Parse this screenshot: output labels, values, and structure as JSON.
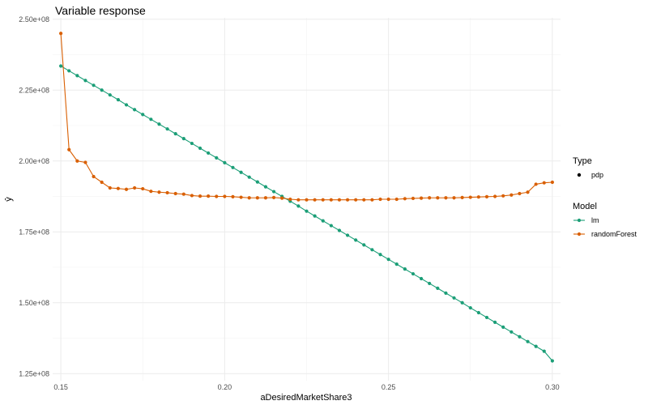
{
  "chart_data": {
    "type": "line",
    "title": "Variable response",
    "xlabel": "aDesiredMarketShare3",
    "ylabel": "ŷ",
    "xlim": [
      0.1475,
      0.3025
    ],
    "ylim": [
      122500000,
      250500000
    ],
    "x_ticks": [
      0.15,
      0.2,
      0.25,
      0.3
    ],
    "x_tick_labels": [
      "0.15",
      "0.20",
      "0.25",
      "0.30"
    ],
    "y_ticks": [
      125000000,
      150000000,
      175000000,
      200000000,
      225000000,
      250000000
    ],
    "y_tick_labels": [
      "1.25e+08",
      "1.50e+08",
      "1.75e+08",
      "2.00e+08",
      "2.25e+08",
      "2.50e+08"
    ],
    "grid": true,
    "legend_position": "right",
    "legend": {
      "type_title": "Type",
      "type_items": [
        "pdp"
      ],
      "model_title": "Model"
    },
    "series": [
      {
        "name": "lm",
        "color": "#1b9e77",
        "x": [
          0.15,
          0.1525,
          0.155,
          0.1575,
          0.16,
          0.1625,
          0.165,
          0.1675,
          0.17,
          0.1725,
          0.175,
          0.1775,
          0.18,
          0.1825,
          0.185,
          0.1875,
          0.19,
          0.1925,
          0.195,
          0.1975,
          0.2,
          0.2025,
          0.205,
          0.2075,
          0.21,
          0.2125,
          0.215,
          0.2175,
          0.22,
          0.2225,
          0.225,
          0.2275,
          0.23,
          0.2325,
          0.235,
          0.2375,
          0.24,
          0.2425,
          0.245,
          0.2475,
          0.25,
          0.2525,
          0.255,
          0.2575,
          0.26,
          0.2625,
          0.265,
          0.2675,
          0.27,
          0.2725,
          0.275,
          0.2775,
          0.28,
          0.2825,
          0.285,
          0.2875,
          0.29,
          0.2925,
          0.295,
          0.2975,
          0.3
        ],
        "values": [
          233500000,
          231800000,
          230100000,
          228400000,
          226700000,
          225000000,
          223300000,
          221600000,
          219800000,
          218100000,
          216400000,
          214700000,
          213000000,
          211300000,
          209600000,
          207900000,
          206200000,
          204500000,
          202800000,
          201100000,
          199400000,
          197700000,
          196000000,
          194300000,
          192600000,
          190900000,
          189200000,
          187500000,
          185800000,
          184100000,
          182300000,
          180600000,
          178900000,
          177200000,
          175500000,
          173800000,
          172100000,
          170400000,
          168700000,
          167000000,
          165300000,
          163600000,
          161900000,
          160200000,
          158500000,
          156800000,
          155100000,
          153400000,
          151700000,
          150000000,
          148200000,
          146500000,
          144800000,
          143100000,
          141400000,
          139700000,
          138000000,
          136300000,
          134600000,
          132900000,
          129500000
        ]
      },
      {
        "name": "randomForest",
        "color": "#d95f02",
        "x": [
          0.15,
          0.1525,
          0.155,
          0.1575,
          0.16,
          0.1625,
          0.165,
          0.1675,
          0.17,
          0.1725,
          0.175,
          0.1775,
          0.18,
          0.1825,
          0.185,
          0.1875,
          0.19,
          0.1925,
          0.195,
          0.1975,
          0.2,
          0.2025,
          0.205,
          0.2075,
          0.21,
          0.2125,
          0.215,
          0.2175,
          0.22,
          0.2225,
          0.225,
          0.2275,
          0.23,
          0.2325,
          0.235,
          0.2375,
          0.24,
          0.2425,
          0.245,
          0.2475,
          0.25,
          0.2525,
          0.255,
          0.2575,
          0.26,
          0.2625,
          0.265,
          0.2675,
          0.27,
          0.2725,
          0.275,
          0.2775,
          0.28,
          0.2825,
          0.285,
          0.2875,
          0.29,
          0.2925,
          0.295,
          0.2975,
          0.3
        ],
        "values": [
          245000000,
          204000000,
          200000000,
          199500000,
          194500000,
          192500000,
          190500000,
          190300000,
          190000000,
          190500000,
          190200000,
          189300000,
          189000000,
          188800000,
          188500000,
          188300000,
          187800000,
          187600000,
          187600000,
          187500000,
          187500000,
          187400000,
          187200000,
          187000000,
          187000000,
          187000000,
          187100000,
          186900000,
          186500000,
          186300000,
          186300000,
          186300000,
          186300000,
          186300000,
          186300000,
          186300000,
          186300000,
          186300000,
          186300000,
          186500000,
          186500000,
          186500000,
          186700000,
          186800000,
          186900000,
          187000000,
          187000000,
          187000000,
          187000000,
          187100000,
          187200000,
          187300000,
          187400000,
          187500000,
          187700000,
          188000000,
          188500000,
          189000000,
          191800000,
          192300000,
          192500000
        ]
      }
    ]
  }
}
